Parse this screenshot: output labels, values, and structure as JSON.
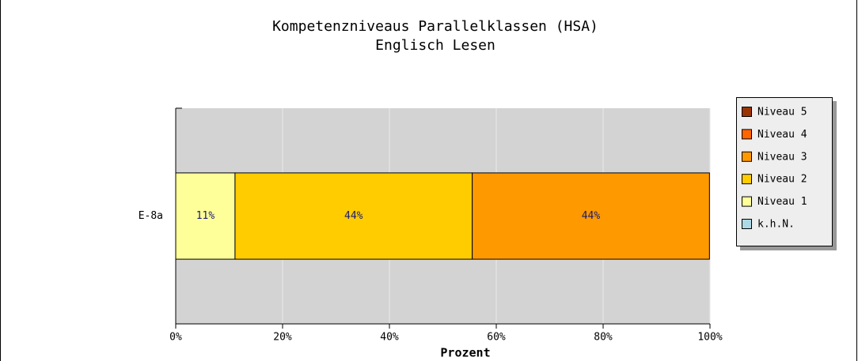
{
  "chart_data": {
    "type": "stacked_barh",
    "title": [
      "Kompetenzniveaus Parallelklassen (HSA)",
      "Englisch Lesen"
    ],
    "xlabel": "Prozent",
    "categories": [
      "E-8a"
    ],
    "series": [
      {
        "name": "Niveau 5",
        "color": "#993300",
        "values": [
          0
        ]
      },
      {
        "name": "Niveau 4",
        "color": "#ff6600",
        "values": [
          0
        ]
      },
      {
        "name": "Niveau 3",
        "color": "#ff9900",
        "values": [
          44.4
        ],
        "value_labels": [
          "44%"
        ]
      },
      {
        "name": "Niveau 2",
        "color": "#ffcc00",
        "values": [
          44.4
        ],
        "value_labels": [
          "44%"
        ]
      },
      {
        "name": "Niveau 1",
        "color": "#ffff99",
        "values": [
          11.1
        ],
        "value_labels": [
          "11%"
        ]
      },
      {
        "name": "k.h.N.",
        "color": "#add8e6",
        "values": [
          0
        ]
      }
    ],
    "xlim": [
      0,
      100
    ],
    "xticks": [
      {
        "value": 0,
        "label": "0%"
      },
      {
        "value": 20,
        "label": "20%"
      },
      {
        "value": 40,
        "label": "40%"
      },
      {
        "value": 60,
        "label": "60%"
      },
      {
        "value": 80,
        "label": "80%"
      },
      {
        "value": 100,
        "label": "100%"
      }
    ],
    "grid": true,
    "legend": "right"
  }
}
